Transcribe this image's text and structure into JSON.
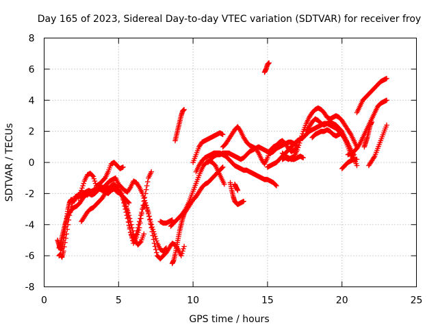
{
  "chart_data": {
    "type": "scatter",
    "title": "Day 165 of 2023, Sidereal Day-to-day VTEC variation (SDTVAR) for receiver froy",
    "xlabel": "GPS time / hours",
    "ylabel": "SDTVAR / TECUs",
    "xlim": [
      0,
      25
    ],
    "ylim": [
      -8,
      8
    ],
    "xticks": [
      "0",
      "5",
      "10",
      "15",
      "20",
      "25"
    ],
    "yticks": [
      "-8",
      "-6",
      "-4",
      "-2",
      "0",
      "2",
      "4",
      "6",
      "8"
    ],
    "grid": true,
    "legend": "none",
    "marker": "plus",
    "color": "#ff0000",
    "series": [
      {
        "x": [
          0.9,
          1.0,
          1.1,
          1.2,
          1.3,
          1.4,
          1.5,
          1.6,
          1.7,
          1.8,
          1.9,
          2.0,
          2.2,
          2.4,
          2.6,
          2.8,
          3.0,
          3.2,
          3.4,
          3.6,
          3.8,
          4.0,
          4.2,
          4.4,
          4.6,
          4.8,
          5.0,
          5.2,
          5.4,
          5.6,
          5.8,
          6.0,
          6.2,
          6.4,
          6.6,
          6.8,
          7.0,
          7.2,
          7.4,
          7.6,
          7.8,
          8.0,
          8.2
        ],
        "y": [
          -5.0,
          -5.3,
          -5.6,
          -5.5,
          -5.0,
          -4.3,
          -3.6,
          -3.0,
          -2.6,
          -2.4,
          -2.4,
          -2.5,
          -2.2,
          -2.0,
          -2.0,
          -1.9,
          -1.8,
          -1.9,
          -1.7,
          -1.8,
          -1.6,
          -1.6,
          -1.4,
          -1.2,
          -1.1,
          -1.0,
          -1.4,
          -1.6,
          -1.8,
          -1.9,
          -1.6,
          -1.2,
          -1.3,
          -1.6,
          -2.0,
          -2.6,
          -3.3,
          -4.0,
          -4.6,
          -5.2,
          -5.6,
          -5.7,
          -5.5
        ]
      },
      {
        "x": [
          1.0,
          1.1,
          1.2,
          1.3,
          1.4,
          1.5,
          1.6,
          1.8,
          2.0,
          2.2,
          2.4,
          2.6,
          2.8,
          3.0,
          3.2,
          3.4,
          3.6,
          3.8,
          4.0,
          4.2,
          4.4,
          4.6,
          4.8,
          5.0,
          5.2,
          5.4,
          5.6,
          5.8,
          6.0,
          6.2,
          6.4,
          6.6,
          6.8,
          7.0,
          7.2
        ],
        "y": [
          -5.5,
          -5.2,
          -4.8,
          -4.4,
          -4.0,
          -3.7,
          -3.4,
          -3.1,
          -2.9,
          -2.8,
          -2.6,
          -2.3,
          -2.1,
          -2.0,
          -2.1,
          -2.0,
          -1.8,
          -1.6,
          -1.7,
          -1.6,
          -1.7,
          -1.6,
          -1.6,
          -1.8,
          -2.1,
          -2.5,
          -3.2,
          -4.5,
          -5.2,
          -4.8,
          -4.2,
          -3.0,
          -2.0,
          -1.0,
          -0.6
        ]
      },
      {
        "x": [
          1.0,
          1.1,
          1.2,
          1.3,
          1.5,
          1.7,
          1.9,
          2.1,
          2.3,
          2.5,
          2.7,
          2.9,
          3.1,
          3.3,
          3.5,
          3.7,
          3.9,
          4.1,
          4.3,
          4.5,
          4.7,
          4.9,
          5.1,
          5.3,
          5.5,
          5.7
        ],
        "y": [
          -6.0,
          -5.9,
          -6.1,
          -5.7,
          -4.6,
          -3.4,
          -2.6,
          -2.2,
          -2.1,
          -2.2,
          -2.0,
          -2.1,
          -1.9,
          -1.8,
          -1.9,
          -1.7,
          -1.8,
          -1.9,
          -2.0,
          -1.8,
          -1.7,
          -1.9,
          -2.0,
          -2.2,
          -2.4,
          -2.6
        ]
      },
      {
        "x": [
          2.3,
          2.5,
          2.7,
          2.9,
          3.1,
          3.3,
          3.5,
          3.7,
          3.9,
          4.1,
          4.3,
          4.5,
          4.7,
          4.9,
          5.1,
          5.3
        ],
        "y": [
          -2.3,
          -1.8,
          -1.2,
          -0.8,
          -0.7,
          -0.9,
          -1.5,
          -1.4,
          -1.2,
          -1.0,
          -0.6,
          -0.1,
          0.0,
          -0.2,
          -0.4,
          -0.3
        ]
      },
      {
        "x": [
          2.5,
          2.7,
          2.9,
          3.1,
          3.3,
          3.5,
          3.7,
          3.9,
          4.1,
          4.3,
          4.5,
          4.7,
          4.9,
          5.1,
          5.3,
          5.5,
          5.7,
          5.9,
          6.1,
          6.3,
          6.5,
          6.7
        ],
        "y": [
          -3.8,
          -3.5,
          -3.2,
          -3.0,
          -2.9,
          -2.7,
          -2.5,
          -2.3,
          -2.0,
          -1.7,
          -1.5,
          -1.4,
          -1.6,
          -1.9,
          -2.3,
          -2.8,
          -3.4,
          -4.2,
          -5.0,
          -5.3,
          -5.1,
          -4.6
        ]
      },
      {
        "x": [
          5.2,
          5.4,
          5.6,
          5.8,
          6.0,
          6.2,
          6.4,
          6.6,
          6.8,
          7.0,
          7.2,
          7.4,
          7.6,
          7.8,
          8.0,
          8.2,
          8.4,
          8.6,
          8.8,
          9.0,
          9.2,
          9.4
        ],
        "y": [
          -2.0,
          -2.8,
          -3.6,
          -4.5,
          -5.0,
          -4.6,
          -3.8,
          -3.0,
          -2.6,
          -3.2,
          -4.2,
          -5.2,
          -6.0,
          -6.2,
          -6.0,
          -5.8,
          -5.5,
          -5.2,
          -5.3,
          -5.6,
          -6.0,
          -5.4
        ]
      },
      {
        "x": [
          7.8,
          8.0,
          8.2,
          8.4,
          8.6
        ],
        "y": [
          -3.8,
          -3.9,
          -3.9,
          -3.8,
          -3.7
        ]
      },
      {
        "x": [
          8.6,
          8.7,
          8.8,
          8.9,
          9.0,
          9.1,
          9.2,
          9.3,
          9.4,
          9.6,
          9.8,
          10.0,
          10.2,
          10.4,
          10.6,
          10.8,
          11.0,
          11.2,
          11.4,
          11.6,
          11.8,
          12.0
        ],
        "y": [
          -6.5,
          -6.3,
          -5.9,
          -5.4,
          -4.9,
          -4.4,
          -4.0,
          -3.6,
          -3.3,
          -3.0,
          -2.7,
          -2.4,
          -2.2,
          -1.9,
          -1.6,
          -1.4,
          -1.3,
          -1.1,
          -0.9,
          -0.7,
          -0.5,
          -0.3
        ]
      },
      {
        "x": [
          8.5,
          8.7,
          8.9,
          9.1,
          9.3,
          9.5,
          9.7,
          9.9,
          10.1,
          10.3,
          10.5,
          10.7,
          10.9,
          11.1,
          11.3,
          11.5,
          11.7,
          11.9,
          12.1
        ],
        "y": [
          -4.1,
          -3.9,
          -3.7,
          -3.5,
          -3.3,
          -3.0,
          -2.6,
          -2.1,
          -1.6,
          -1.1,
          -0.6,
          -0.2,
          0.0,
          0.1,
          0.0,
          -0.2,
          -0.6,
          -1.0,
          -1.4
        ]
      },
      {
        "x": [
          10.0,
          10.2,
          10.4,
          10.6,
          10.8,
          11.0,
          11.2,
          11.4,
          11.6,
          11.8,
          12.0
        ],
        "y": [
          0.0,
          0.5,
          1.0,
          1.3,
          1.4,
          1.5,
          1.6,
          1.7,
          1.8,
          1.9,
          1.8
        ]
      },
      {
        "x": [
          10.2,
          10.4,
          10.6,
          10.8,
          11.0,
          11.2,
          11.4,
          11.6,
          11.8,
          12.0,
          12.2,
          12.4,
          12.6,
          12.8,
          13.0,
          13.2,
          13.4,
          13.6,
          13.8,
          14.0,
          14.2,
          14.4,
          14.6,
          14.8,
          15.0,
          15.2,
          15.4,
          15.6
        ],
        "y": [
          -0.6,
          -0.2,
          0.1,
          0.3,
          0.4,
          0.5,
          0.6,
          0.6,
          0.6,
          0.5,
          0.4,
          0.2,
          0.0,
          -0.2,
          -0.3,
          -0.4,
          -0.5,
          -0.5,
          -0.6,
          -0.7,
          -0.8,
          -0.9,
          -1.0,
          -1.1,
          -1.1,
          -1.2,
          -1.3,
          -1.5
        ]
      },
      {
        "x": [
          11.0,
          11.2,
          11.4,
          11.6,
          11.8,
          12.0,
          12.2,
          12.4,
          12.6,
          12.8,
          13.0,
          13.2,
          13.4,
          13.6,
          13.8,
          14.0,
          14.2,
          14.4,
          14.6,
          14.8,
          15.0,
          15.2,
          15.4,
          15.6,
          15.8,
          16.0,
          16.2,
          16.4,
          16.6,
          16.8,
          17.0
        ],
        "y": [
          0.0,
          0.2,
          0.4,
          0.5,
          0.5,
          0.6,
          0.6,
          0.6,
          0.5,
          0.4,
          0.3,
          0.2,
          0.3,
          0.5,
          0.7,
          0.8,
          0.9,
          1.0,
          0.9,
          0.8,
          0.7,
          0.6,
          0.7,
          0.9,
          1.0,
          1.1,
          1.2,
          1.3,
          1.3,
          1.2,
          1.1
        ]
      },
      {
        "x": [
          12.0,
          12.2,
          12.4,
          12.6,
          12.8,
          13.0,
          13.2,
          13.4,
          13.6,
          13.8,
          14.0,
          14.2,
          14.4,
          14.6,
          14.8,
          15.0,
          15.2,
          15.4,
          15.6,
          15.8,
          16.0,
          16.2,
          16.4,
          16.6,
          16.8,
          17.0
        ],
        "y": [
          1.0,
          1.2,
          1.5,
          1.8,
          2.1,
          2.3,
          2.0,
          1.6,
          1.3,
          1.1,
          1.0,
          0.9,
          0.6,
          0.2,
          -0.1,
          0.3,
          0.8,
          1.0,
          1.1,
          1.3,
          1.4,
          1.2,
          0.9,
          0.7,
          0.8,
          1.0
        ]
      },
      {
        "x": [
          12.5,
          12.6,
          12.7,
          12.8,
          12.9,
          13.0,
          13.2,
          13.4
        ],
        "y": [
          -1.3,
          -1.8,
          -2.2,
          -2.5,
          -2.6,
          -2.7,
          -2.6,
          -2.5
        ]
      },
      {
        "x": [
          12.8,
          12.9,
          13.0
        ],
        "y": [
          -1.4,
          -1.6,
          -1.8
        ]
      },
      {
        "x": [
          14.8,
          14.9,
          15.0,
          15.1
        ],
        "y": [
          5.8,
          6.0,
          6.3,
          6.4
        ]
      },
      {
        "x": [
          8.8,
          8.9,
          9.0,
          9.1,
          9.2,
          9.3,
          9.4
        ],
        "y": [
          1.4,
          1.8,
          2.2,
          2.6,
          3.0,
          3.3,
          3.4
        ]
      },
      {
        "x": [
          15.0,
          15.2,
          15.4,
          15.6,
          15.8,
          16.0,
          16.2,
          16.4,
          16.6,
          16.8,
          17.0,
          17.2,
          17.4,
          17.6,
          17.8,
          18.0,
          18.2,
          18.4,
          18.6,
          18.8,
          19.0,
          19.2,
          19.4,
          19.6,
          19.8,
          20.0,
          20.2,
          20.4,
          20.6,
          20.8,
          21.0
        ],
        "y": [
          -0.3,
          -0.2,
          -0.1,
          0.0,
          0.2,
          0.4,
          0.6,
          0.8,
          1.0,
          1.2,
          1.4,
          1.5,
          1.6,
          1.8,
          2.0,
          2.1,
          2.2,
          2.3,
          2.4,
          2.5,
          2.5,
          2.4,
          2.3,
          2.2,
          2.0,
          1.8,
          1.5,
          1.2,
          0.8,
          0.3,
          -0.2
        ]
      },
      {
        "x": [
          16.0,
          16.2,
          16.4,
          16.6,
          16.8,
          17.0,
          17.2,
          17.4,
          17.6,
          17.8,
          18.0,
          18.2,
          18.4,
          18.6,
          18.8,
          19.0,
          19.2,
          19.4,
          19.6,
          19.8,
          20.0,
          20.2,
          20.4,
          20.6,
          20.8,
          21.0
        ],
        "y": [
          0.2,
          0.3,
          0.2,
          0.3,
          0.4,
          0.8,
          1.4,
          2.0,
          2.5,
          2.9,
          3.2,
          3.4,
          3.5,
          3.4,
          3.2,
          2.9,
          2.8,
          2.9,
          3.0,
          2.9,
          2.7,
          2.4,
          2.1,
          1.8,
          1.4,
          1.0
        ]
      },
      {
        "x": [
          17.6,
          17.8,
          18.0,
          18.2,
          18.4,
          18.6,
          18.8,
          19.0,
          19.2,
          19.4,
          19.6,
          19.8,
          20.0,
          20.2,
          20.4,
          20.6,
          20.8
        ],
        "y": [
          2.0,
          2.3,
          2.6,
          2.8,
          2.7,
          2.5,
          2.4,
          2.5,
          2.6,
          2.5,
          2.4,
          2.2,
          2.0,
          1.6,
          1.2,
          0.8,
          0.5
        ]
      },
      {
        "x": [
          18.0,
          18.2,
          18.4,
          18.6,
          18.8,
          19.0,
          19.2,
          19.4,
          19.6,
          19.8,
          20.0,
          20.2,
          20.4,
          20.6,
          20.8
        ],
        "y": [
          1.6,
          1.8,
          1.9,
          2.0,
          2.0,
          2.1,
          2.0,
          1.8,
          1.7,
          1.8,
          1.9,
          1.5,
          1.0,
          0.5,
          0.1
        ]
      },
      {
        "x": [
          20.0,
          20.2,
          20.4,
          20.6,
          20.8,
          21.0
        ],
        "y": [
          -0.4,
          -0.2,
          0.0,
          0.1,
          0.2,
          0.2
        ]
      },
      {
        "x": [
          20.4,
          20.6,
          20.8,
          21.0,
          21.2,
          21.4
        ],
        "y": [
          0.5,
          0.6,
          0.7,
          0.9,
          1.2,
          1.6
        ]
      },
      {
        "x": [
          21.0,
          21.2,
          21.4,
          21.6,
          21.8,
          22.0,
          22.2,
          22.4,
          22.6,
          22.8,
          23.0
        ],
        "y": [
          3.2,
          3.6,
          4.0,
          4.2,
          4.4,
          4.6,
          4.8,
          5.0,
          5.2,
          5.3,
          5.4
        ]
      },
      {
        "x": [
          21.4,
          21.6,
          21.8,
          22.0,
          22.2,
          22.4,
          22.6,
          22.8,
          23.0
        ],
        "y": [
          1.6,
          2.0,
          2.4,
          2.8,
          3.2,
          3.6,
          3.8,
          3.9,
          4.0
        ]
      },
      {
        "x": [
          21.8,
          22.0,
          22.2,
          22.4,
          22.6,
          22.8,
          23.0
        ],
        "y": [
          -0.2,
          0.1,
          0.4,
          0.9,
          1.4,
          1.9,
          2.4
        ]
      },
      {
        "x": [
          21.5,
          21.6,
          21.7,
          21.8,
          21.9,
          22.0
        ],
        "y": [
          1.0,
          1.3,
          1.6,
          2.0,
          2.4,
          2.6
        ]
      },
      {
        "x": [
          16.0,
          16.2,
          16.4,
          16.6,
          16.8,
          17.0,
          17.2,
          17.4
        ],
        "y": [
          0.6,
          0.4,
          0.3,
          0.2,
          0.2,
          0.3,
          0.4,
          0.3
        ]
      }
    ]
  }
}
